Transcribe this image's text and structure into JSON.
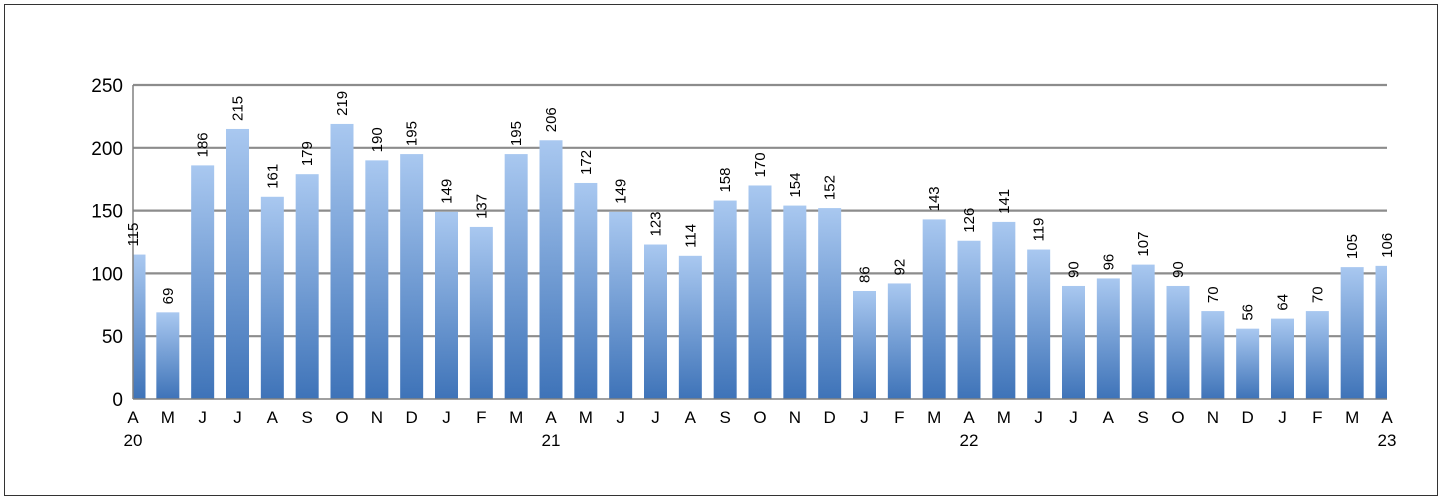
{
  "chart_data": {
    "type": "bar",
    "title": "",
    "xlabel": "",
    "ylabel": "",
    "ylim": [
      0,
      250
    ],
    "yticks": [
      0,
      50,
      100,
      150,
      200,
      250
    ],
    "grid": true,
    "legend": "none",
    "colors": {
      "bar_top": "#A9C8F0",
      "bar_bottom": "#3E73B8",
      "grid": "#8C8C8C",
      "axis": "#808080"
    },
    "categories": [
      "A",
      "M",
      "J",
      "J",
      "A",
      "S",
      "O",
      "N",
      "D",
      "J",
      "F",
      "M",
      "A",
      "M",
      "J",
      "J",
      "A",
      "S",
      "O",
      "N",
      "D",
      "J",
      "F",
      "M",
      "A",
      "M",
      "J",
      "J",
      "A",
      "S",
      "O",
      "N",
      "D",
      "J",
      "F",
      "M",
      "A"
    ],
    "year_labels": [
      {
        "index": 0,
        "label": "20"
      },
      {
        "index": 12,
        "label": "21"
      },
      {
        "index": 24,
        "label": "22"
      },
      {
        "index": 36,
        "label": "23"
      }
    ],
    "values": [
      115,
      69,
      186,
      215,
      161,
      179,
      219,
      190,
      195,
      149,
      137,
      195,
      206,
      172,
      149,
      123,
      114,
      158,
      170,
      154,
      152,
      86,
      92,
      143,
      126,
      141,
      119,
      90,
      96,
      107,
      90,
      70,
      56,
      64,
      70,
      105,
      106
    ]
  }
}
